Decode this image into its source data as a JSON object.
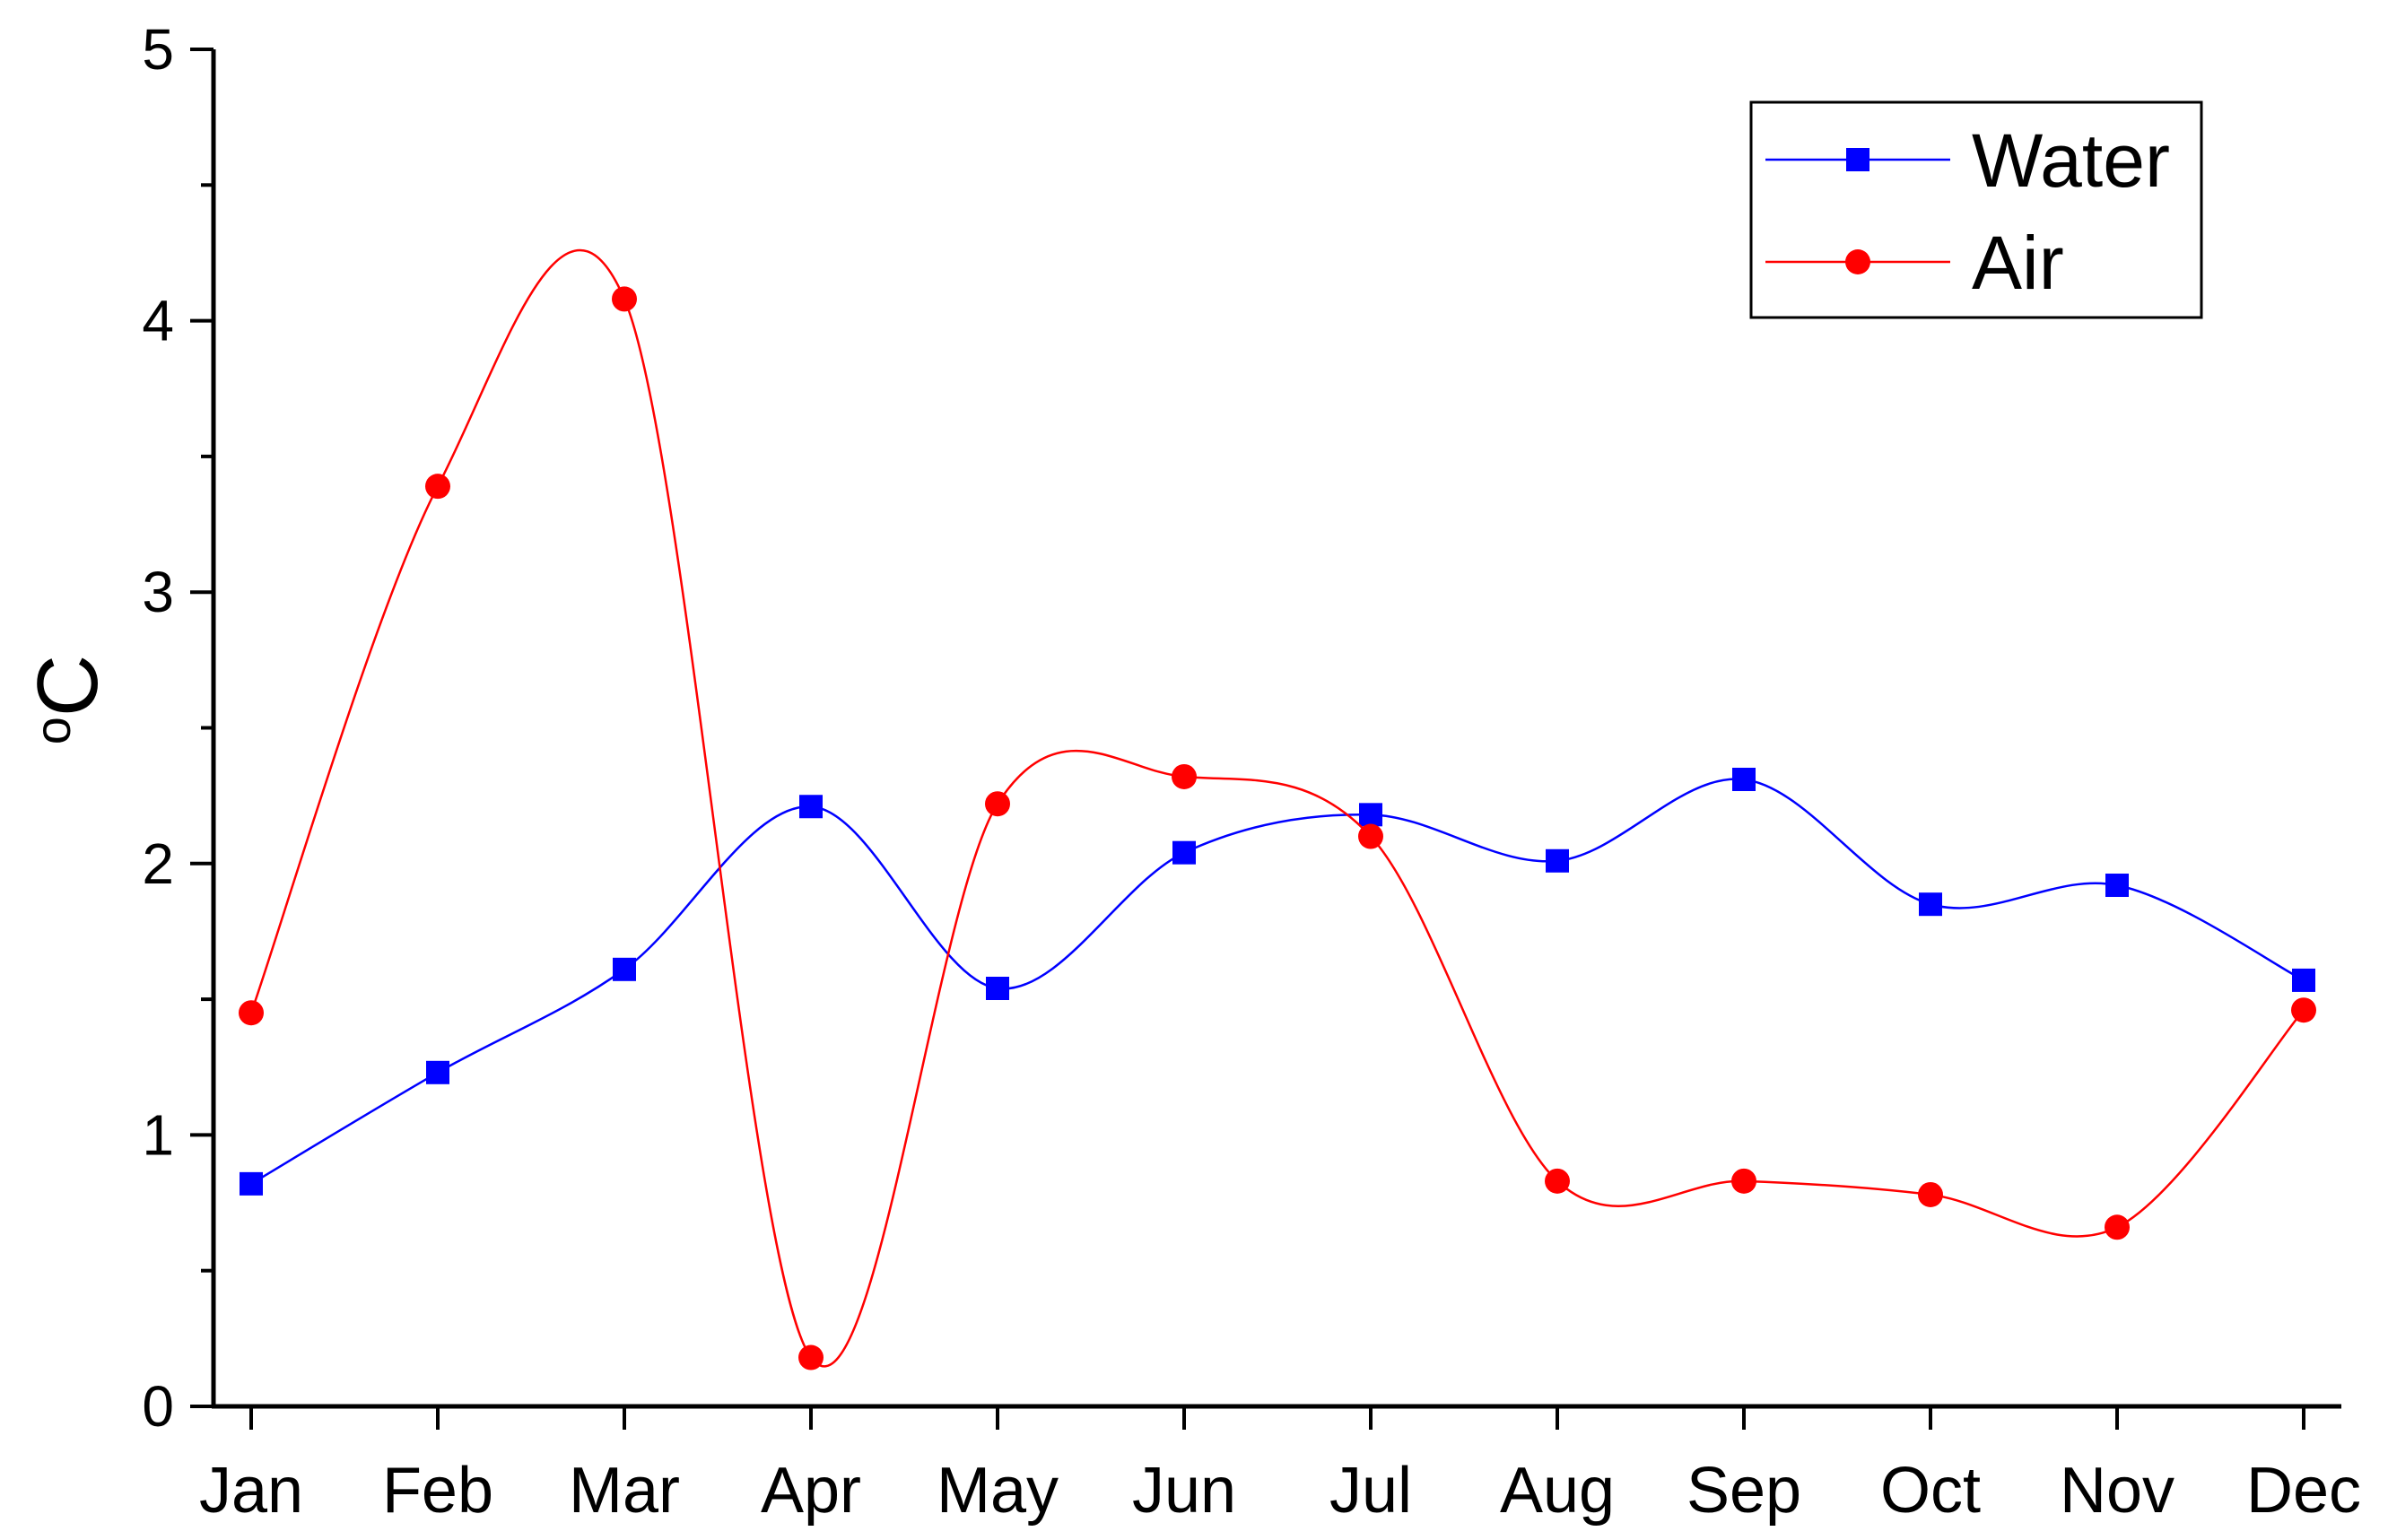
{
  "chart_data": {
    "type": "line",
    "title": "",
    "xlabel": "",
    "ylabel": "oC",
    "categories": [
      "Jan",
      "Feb",
      "Mar",
      "Apr",
      "May",
      "Jun",
      "Jul",
      "Aug",
      "Sep",
      "Oct",
      "Nov",
      "Dec"
    ],
    "ylim": [
      0,
      5
    ],
    "yticks": [
      0,
      1,
      2,
      3,
      4,
      5
    ],
    "grid": false,
    "legend_position": "top-right",
    "smooth": true,
    "series": [
      {
        "name": "Water",
        "color": "#0000ff",
        "marker": "square",
        "values": [
          0.82,
          1.23,
          1.61,
          2.21,
          1.54,
          2.04,
          2.18,
          2.01,
          2.31,
          1.85,
          1.92,
          1.57
        ]
      },
      {
        "name": "Air",
        "color": "#ff0000",
        "marker": "circle",
        "values": [
          1.45,
          3.39,
          4.08,
          0.18,
          2.22,
          2.32,
          2.1,
          0.83,
          0.83,
          0.78,
          0.66,
          1.46
        ]
      }
    ]
  }
}
